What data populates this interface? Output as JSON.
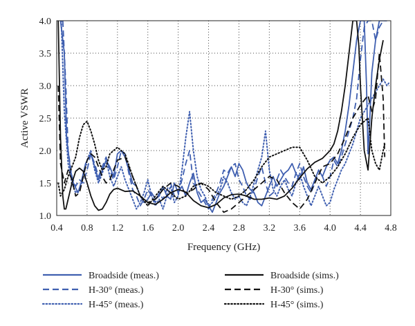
{
  "chart_data": {
    "type": "line",
    "xlabel": "Frequency (GHz)",
    "ylabel": "Active VSWR",
    "xlim": [
      0.4,
      4.8
    ],
    "ylim": [
      1.0,
      4.0
    ],
    "xticks": [
      0.4,
      0.8,
      1.2,
      1.6,
      2.0,
      2.4,
      2.8,
      3.2,
      3.6,
      4.0,
      4.4,
      4.8
    ],
    "xtick_labels": [
      "0.4",
      "0.8",
      "1.2",
      "1.6",
      "2.0",
      "2.4",
      "2.8",
      "3.2",
      "3.6",
      "4.0",
      "4.4",
      "4.8"
    ],
    "yticks": [
      1.0,
      1.5,
      2.0,
      2.5,
      3.0,
      3.5,
      4.0
    ],
    "ytick_labels": [
      "1.0",
      "1.5",
      "2.0",
      "2.5",
      "3.0",
      "3.5",
      "4.0"
    ],
    "grid": true,
    "legend_position": "bottom",
    "colors": {
      "measured": "#3f5fb0",
      "simulated": "#111111",
      "grid": "#444444"
    },
    "series": [
      {
        "name": "Broadside (meas.)",
        "color": "#3f5fb0",
        "style": "solid",
        "x": [
          0.45,
          0.5,
          0.53,
          0.58,
          0.62,
          0.68,
          0.72,
          0.78,
          0.85,
          0.9,
          0.95,
          1.0,
          1.05,
          1.1,
          1.15,
          1.2,
          1.25,
          1.3,
          1.35,
          1.4,
          1.45,
          1.5,
          1.55,
          1.6,
          1.65,
          1.7,
          1.75,
          1.8,
          1.85,
          1.9,
          1.95,
          2.0,
          2.05,
          2.1,
          2.15,
          2.2,
          2.25,
          2.3,
          2.35,
          2.4,
          2.45,
          2.5,
          2.55,
          2.6,
          2.65,
          2.7,
          2.75,
          2.8,
          2.85,
          2.9,
          2.95,
          3.0,
          3.05,
          3.1,
          3.15,
          3.2,
          3.25,
          3.3,
          3.35,
          3.4,
          3.45,
          3.5,
          3.55,
          3.6,
          3.65,
          3.7,
          3.75,
          3.8,
          3.85,
          3.9,
          3.95,
          4.0,
          4.05,
          4.1,
          4.15,
          4.2,
          4.25,
          4.3,
          4.35,
          4.4,
          4.45,
          4.48,
          4.5,
          4.52,
          4.55,
          4.6,
          4.65,
          4.7,
          4.75
        ],
        "y": [
          4.0,
          3.5,
          2.2,
          1.7,
          1.5,
          1.35,
          1.5,
          1.8,
          1.95,
          1.75,
          1.55,
          1.7,
          1.85,
          1.75,
          1.6,
          1.95,
          2.0,
          1.9,
          1.7,
          1.5,
          1.45,
          1.3,
          1.2,
          1.25,
          1.35,
          1.25,
          1.3,
          1.45,
          1.3,
          1.25,
          1.5,
          1.35,
          1.45,
          1.3,
          1.5,
          1.65,
          1.35,
          1.2,
          1.25,
          1.15,
          1.05,
          1.2,
          1.35,
          1.45,
          1.6,
          1.75,
          1.6,
          1.8,
          1.7,
          1.5,
          1.4,
          1.35,
          1.2,
          1.15,
          1.3,
          1.45,
          1.6,
          1.45,
          1.55,
          1.65,
          1.7,
          1.8,
          1.65,
          1.55,
          1.75,
          1.5,
          1.4,
          1.55,
          1.7,
          1.6,
          1.75,
          1.85,
          1.9,
          1.8,
          2.0,
          2.3,
          2.7,
          3.2,
          3.7,
          4.0,
          4.0,
          3.0,
          1.95,
          2.4,
          3.2,
          3.7,
          4.0,
          4.0,
          4.0
        ]
      },
      {
        "name": "H-30° (meas.)",
        "color": "#3f5fb0",
        "style": "dashed",
        "x": [
          0.48,
          0.52,
          0.55,
          0.6,
          0.65,
          0.7,
          0.75,
          0.8,
          0.85,
          0.9,
          0.95,
          1.0,
          1.05,
          1.1,
          1.15,
          1.2,
          1.25,
          1.3,
          1.35,
          1.4,
          1.45,
          1.5,
          1.55,
          1.6,
          1.65,
          1.7,
          1.75,
          1.8,
          1.85,
          1.9,
          1.95,
          2.0,
          2.05,
          2.1,
          2.15,
          2.2,
          2.25,
          2.3,
          2.35,
          2.4,
          2.45,
          2.5,
          2.55,
          2.6,
          2.65,
          2.7,
          2.75,
          2.8,
          2.85,
          2.9,
          2.95,
          3.0,
          3.05,
          3.1,
          3.15,
          3.2,
          3.25,
          3.3,
          3.35,
          3.4,
          3.45,
          3.5,
          3.55,
          3.6,
          3.65,
          3.7,
          3.75,
          3.8,
          3.85,
          3.9,
          3.95,
          4.0,
          4.05,
          4.1,
          4.15,
          4.2,
          4.25,
          4.3,
          4.35,
          4.4,
          4.45,
          4.5,
          4.55,
          4.6,
          4.65,
          4.7,
          4.75
        ],
        "y": [
          4.0,
          3.0,
          2.0,
          1.6,
          1.45,
          1.55,
          1.5,
          1.7,
          1.95,
          1.8,
          1.6,
          1.75,
          1.9,
          1.7,
          1.55,
          1.75,
          2.0,
          1.95,
          1.65,
          1.4,
          1.3,
          1.15,
          1.25,
          1.4,
          1.3,
          1.2,
          1.35,
          1.25,
          1.4,
          1.5,
          1.3,
          1.35,
          1.55,
          1.8,
          2.0,
          1.5,
          1.4,
          1.3,
          1.2,
          1.1,
          1.25,
          1.35,
          1.5,
          1.7,
          1.65,
          1.75,
          1.8,
          1.55,
          1.45,
          1.3,
          1.25,
          1.4,
          1.6,
          1.75,
          1.5,
          1.3,
          1.35,
          1.55,
          1.7,
          1.6,
          1.5,
          1.45,
          1.65,
          1.8,
          1.6,
          1.45,
          1.35,
          1.5,
          1.7,
          1.6,
          1.45,
          1.6,
          1.85,
          1.75,
          1.9,
          2.1,
          2.3,
          2.5,
          2.8,
          3.4,
          3.9,
          4.0,
          4.0,
          3.7,
          3.9,
          4.0,
          4.0
        ]
      },
      {
        "name": "H-45° (meas.)",
        "color": "#3f5fb0",
        "style": "dotted",
        "x": [
          0.46,
          0.5,
          0.55,
          0.6,
          0.65,
          0.7,
          0.75,
          0.8,
          0.85,
          0.9,
          0.95,
          1.0,
          1.05,
          1.1,
          1.15,
          1.2,
          1.25,
          1.3,
          1.35,
          1.4,
          1.45,
          1.5,
          1.55,
          1.6,
          1.65,
          1.7,
          1.75,
          1.8,
          1.85,
          1.9,
          1.95,
          2.0,
          2.05,
          2.1,
          2.15,
          2.2,
          2.25,
          2.3,
          2.35,
          2.4,
          2.45,
          2.5,
          2.55,
          2.6,
          2.65,
          2.7,
          2.75,
          2.8,
          2.85,
          2.9,
          2.95,
          3.0,
          3.05,
          3.1,
          3.15,
          3.2,
          3.25,
          3.3,
          3.35,
          3.4,
          3.45,
          3.5,
          3.55,
          3.6,
          3.65,
          3.7,
          3.75,
          3.8,
          3.85,
          3.9,
          3.95,
          4.0,
          4.05,
          4.1,
          4.15,
          4.2,
          4.25,
          4.3,
          4.35,
          4.4,
          4.45,
          4.5,
          4.55,
          4.6,
          4.65,
          4.7,
          4.75,
          4.78
        ],
        "y": [
          4.0,
          2.6,
          1.8,
          1.5,
          1.35,
          1.4,
          1.6,
          1.85,
          2.0,
          1.7,
          1.5,
          1.65,
          1.85,
          1.6,
          1.45,
          1.6,
          1.75,
          1.55,
          1.4,
          1.25,
          1.1,
          1.2,
          1.35,
          1.55,
          1.3,
          1.15,
          1.25,
          1.1,
          1.3,
          1.45,
          1.2,
          1.3,
          1.7,
          2.2,
          2.6,
          2.0,
          1.6,
          1.4,
          1.3,
          1.15,
          1.2,
          1.3,
          1.4,
          1.6,
          1.5,
          1.35,
          1.25,
          1.3,
          1.2,
          1.15,
          1.3,
          1.5,
          1.7,
          1.9,
          2.3,
          1.7,
          1.4,
          1.3,
          1.45,
          1.55,
          1.4,
          1.3,
          1.5,
          1.65,
          1.45,
          1.3,
          1.15,
          1.3,
          1.45,
          1.3,
          1.15,
          1.2,
          1.4,
          1.55,
          1.7,
          1.8,
          1.95,
          2.1,
          2.3,
          2.5,
          2.6,
          2.7,
          2.8,
          2.9,
          3.0,
          3.1,
          3.0,
          3.05
        ]
      },
      {
        "name": "Broadside (sims.)",
        "color": "#111111",
        "style": "solid",
        "x": [
          0.42,
          0.45,
          0.48,
          0.5,
          0.52,
          0.55,
          0.6,
          0.65,
          0.7,
          0.75,
          0.8,
          0.85,
          0.9,
          0.95,
          1.0,
          1.05,
          1.1,
          1.15,
          1.2,
          1.3,
          1.4,
          1.5,
          1.6,
          1.7,
          1.8,
          1.9,
          2.0,
          2.1,
          2.2,
          2.3,
          2.4,
          2.5,
          2.6,
          2.7,
          2.8,
          2.9,
          3.0,
          3.1,
          3.2,
          3.3,
          3.4,
          3.5,
          3.6,
          3.7,
          3.8,
          3.9,
          4.0,
          4.05,
          4.1,
          4.15,
          4.2,
          4.25,
          4.3,
          4.35,
          4.38,
          4.4,
          4.45,
          4.5,
          4.55,
          4.6,
          4.65,
          4.7
        ],
        "y": [
          4.0,
          2.2,
          1.3,
          1.1,
          1.1,
          1.25,
          1.5,
          1.68,
          1.73,
          1.68,
          1.5,
          1.3,
          1.15,
          1.08,
          1.1,
          1.2,
          1.33,
          1.4,
          1.42,
          1.37,
          1.38,
          1.3,
          1.2,
          1.17,
          1.25,
          1.35,
          1.4,
          1.36,
          1.23,
          1.15,
          1.12,
          1.17,
          1.27,
          1.32,
          1.33,
          1.3,
          1.25,
          1.25,
          1.27,
          1.25,
          1.3,
          1.42,
          1.58,
          1.72,
          1.82,
          1.88,
          2.0,
          2.1,
          2.3,
          2.6,
          3.0,
          3.5,
          4.0,
          4.0,
          3.6,
          3.0,
          2.0,
          1.7,
          2.5,
          3.0,
          3.4,
          3.7
        ]
      },
      {
        "name": "H-30° (sims.)",
        "color": "#111111",
        "style": "dashed",
        "x": [
          0.42,
          0.45,
          0.5,
          0.55,
          0.6,
          0.65,
          0.7,
          0.75,
          0.8,
          0.85,
          0.9,
          0.95,
          1.0,
          1.05,
          1.1,
          1.2,
          1.3,
          1.4,
          1.5,
          1.6,
          1.7,
          1.8,
          1.9,
          2.0,
          2.1,
          2.2,
          2.3,
          2.4,
          2.5,
          2.6,
          2.7,
          2.8,
          2.9,
          3.0,
          3.1,
          3.2,
          3.3,
          3.4,
          3.5,
          3.6,
          3.7,
          3.8,
          3.9,
          4.0,
          4.1,
          4.2,
          4.3,
          4.4,
          4.5,
          4.55,
          4.6,
          4.65,
          4.7,
          4.72
        ],
        "y": [
          3.0,
          1.8,
          1.5,
          1.7,
          1.55,
          1.3,
          1.35,
          1.6,
          1.85,
          1.95,
          1.9,
          1.75,
          1.6,
          1.5,
          1.55,
          1.85,
          1.9,
          1.6,
          1.3,
          1.2,
          1.25,
          1.4,
          1.5,
          1.45,
          1.35,
          1.4,
          1.5,
          1.4,
          1.2,
          1.05,
          1.1,
          1.2,
          1.3,
          1.4,
          1.5,
          1.6,
          1.55,
          1.35,
          1.2,
          1.1,
          1.25,
          1.5,
          1.75,
          1.8,
          1.95,
          2.2,
          2.5,
          2.7,
          2.85,
          2.6,
          2.8,
          3.5,
          2.8,
          1.9
        ]
      },
      {
        "name": "H-45° (sims.)",
        "color": "#111111",
        "style": "dotted",
        "x": [
          0.42,
          0.45,
          0.5,
          0.55,
          0.6,
          0.65,
          0.7,
          0.75,
          0.8,
          0.85,
          0.9,
          0.95,
          1.0,
          1.05,
          1.1,
          1.2,
          1.3,
          1.4,
          1.5,
          1.6,
          1.7,
          1.8,
          1.9,
          2.0,
          2.1,
          2.2,
          2.3,
          2.4,
          2.5,
          2.6,
          2.7,
          2.8,
          2.9,
          3.0,
          3.1,
          3.2,
          3.3,
          3.4,
          3.5,
          3.6,
          3.7,
          3.8,
          3.9,
          4.0,
          4.1,
          4.2,
          4.3,
          4.4,
          4.5,
          4.55,
          4.6,
          4.65,
          4.7,
          4.72
        ],
        "y": [
          1.5,
          1.3,
          1.4,
          1.6,
          1.75,
          1.9,
          2.2,
          2.4,
          2.45,
          2.3,
          2.1,
          1.85,
          1.7,
          1.75,
          1.95,
          2.05,
          1.95,
          1.6,
          1.3,
          1.15,
          1.3,
          1.45,
          1.35,
          1.25,
          1.3,
          1.45,
          1.5,
          1.45,
          1.35,
          1.3,
          1.25,
          1.3,
          1.4,
          1.55,
          1.75,
          1.9,
          1.95,
          2.0,
          2.05,
          2.05,
          1.85,
          1.6,
          1.5,
          1.6,
          1.75,
          1.95,
          2.2,
          2.4,
          2.5,
          2.0,
          1.8,
          1.7,
          2.0,
          2.1
        ]
      }
    ]
  },
  "legend": {
    "items": [
      {
        "label": "Broadside (meas.)",
        "color": "#3f5fb0",
        "style": "solid"
      },
      {
        "label": "Broadside (sims.)",
        "color": "#111111",
        "style": "solid"
      },
      {
        "label": "H-30° (meas.)",
        "color": "#3f5fb0",
        "style": "dashed"
      },
      {
        "label": "H-30° (sims.)",
        "color": "#111111",
        "style": "dashed"
      },
      {
        "label": "H-45° (meas.)",
        "color": "#3f5fb0",
        "style": "dotted"
      },
      {
        "label": "H-45° (sims.)",
        "color": "#111111",
        "style": "dotted"
      }
    ]
  }
}
